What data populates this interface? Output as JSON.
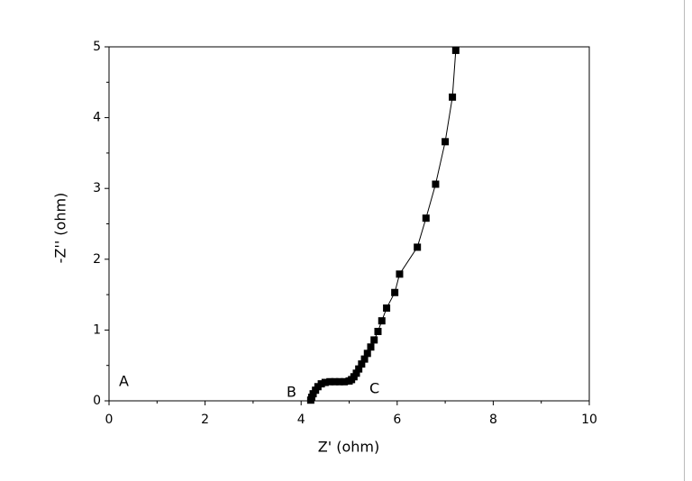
{
  "chart_data": {
    "type": "line",
    "xlabel": "Z' (ohm)",
    "ylabel": "-Z'' (ohm)",
    "x": [
      4.2,
      4.22,
      4.25,
      4.3,
      4.35,
      4.42,
      4.5,
      4.6,
      4.7,
      4.8,
      4.9,
      5.0,
      5.05,
      5.1,
      5.15,
      5.2,
      5.26,
      5.32,
      5.38,
      5.45,
      5.52,
      5.6,
      5.68,
      5.78,
      5.95,
      6.05,
      6.42,
      6.6,
      6.8,
      7.0,
      7.15,
      7.22
    ],
    "series": [
      {
        "color": "#000000",
        "values": [
          0.01,
          0.05,
          0.1,
          0.15,
          0.2,
          0.24,
          0.26,
          0.27,
          0.27,
          0.27,
          0.27,
          0.28,
          0.3,
          0.34,
          0.39,
          0.45,
          0.52,
          0.59,
          0.67,
          0.76,
          0.86,
          0.98,
          1.13,
          1.31,
          1.53,
          1.79,
          2.17,
          2.58,
          3.06,
          3.66,
          4.29,
          4.95
        ]
      }
    ],
    "xlim": [
      0,
      10
    ],
    "ylim": [
      0,
      5
    ],
    "xticks": [
      0,
      2,
      4,
      6,
      8,
      10
    ],
    "yticks": [
      0,
      1,
      2,
      3,
      4,
      5
    ],
    "annotations": [
      "A",
      "B",
      "C"
    ]
  }
}
